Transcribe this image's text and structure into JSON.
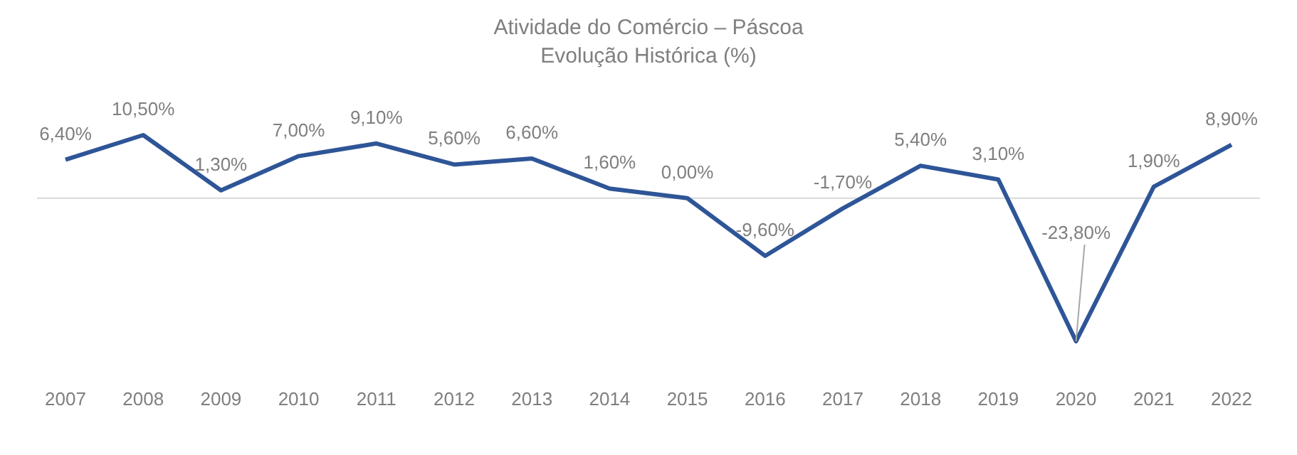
{
  "chart_data": {
    "type": "line",
    "title": "Atividade do Comércio – Páscoa",
    "subtitle": "Evolução Histórica (%)",
    "categories": [
      "2007",
      "2008",
      "2009",
      "2010",
      "2011",
      "2012",
      "2013",
      "2014",
      "2015",
      "2016",
      "2017",
      "2018",
      "2019",
      "2020",
      "2021",
      "2022"
    ],
    "series": [
      {
        "color": "#2e5597",
        "values": [
          6.4,
          10.5,
          1.3,
          7.0,
          9.1,
          5.6,
          6.6,
          1.6,
          0.0,
          -9.6,
          -1.7,
          5.4,
          3.1,
          -23.8,
          1.9,
          8.9
        ],
        "value_labels": [
          "6,40%",
          "10,50%",
          "1,30%",
          "7,00%",
          "9,10%",
          "5,60%",
          "6,60%",
          "1,60%",
          "0,00%",
          "-9,60%",
          "-1,70%",
          "5,40%",
          "3,10%",
          "-23,80%",
          "1,90%",
          "8,90%"
        ]
      }
    ],
    "grid": false,
    "legend": false,
    "marker": "none",
    "line_style": "solid"
  }
}
